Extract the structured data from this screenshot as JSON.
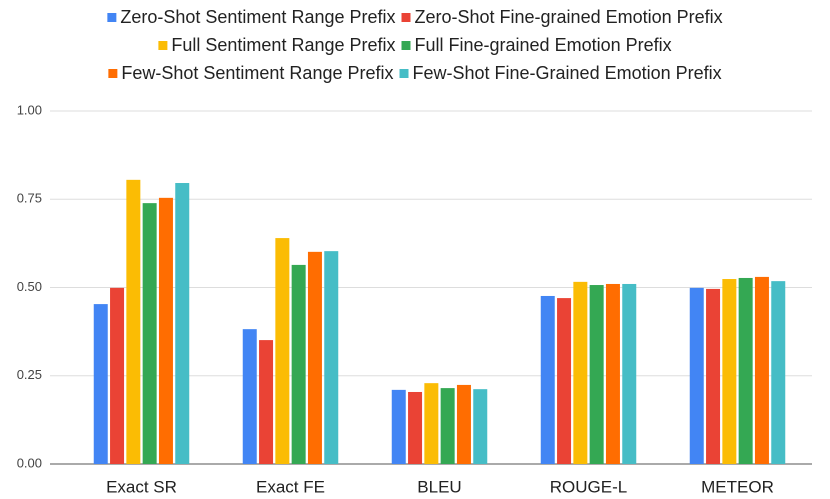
{
  "chart_data": {
    "type": "bar",
    "categories": [
      "Exact SR",
      "Exact FE",
      "BLEU",
      "ROUGE-L",
      "METEOR"
    ],
    "series": [
      {
        "name": "Zero-Shot Sentiment Range Prefix",
        "color": "#4285f4",
        "values": [
          0.453,
          0.382,
          0.21,
          0.476,
          0.499
        ]
      },
      {
        "name": "Zero-Shot Fine-grained Emotion Prefix",
        "color": "#ea4335",
        "values": [
          0.499,
          0.351,
          0.204,
          0.47,
          0.496
        ]
      },
      {
        "name": "Full Sentiment Range Prefix",
        "color": "#fbbc04",
        "values": [
          0.805,
          0.64,
          0.229,
          0.516,
          0.524
        ]
      },
      {
        "name": "Full Fine-grained Emotion Prefix",
        "color": "#34a853",
        "values": [
          0.739,
          0.564,
          0.215,
          0.507,
          0.527
        ]
      },
      {
        "name": "Few-Shot Sentiment Range Prefix",
        "color": "#ff6d01",
        "values": [
          0.754,
          0.601,
          0.224,
          0.51,
          0.53
        ]
      },
      {
        "name": "Few-Shot Fine-Grained Emotion Prefix",
        "color": "#46bdc6",
        "values": [
          0.796,
          0.603,
          0.212,
          0.51,
          0.518
        ]
      }
    ],
    "ylim": [
      0,
      1
    ],
    "yticks": [
      {
        "value": 0,
        "label": "0.00"
      },
      0.25,
      {
        "value": 0.5,
        "label": "0.50"
      },
      0.75,
      {
        "value": 1,
        "label": "1.00"
      }
    ],
    "grid": true,
    "legend": "top"
  }
}
